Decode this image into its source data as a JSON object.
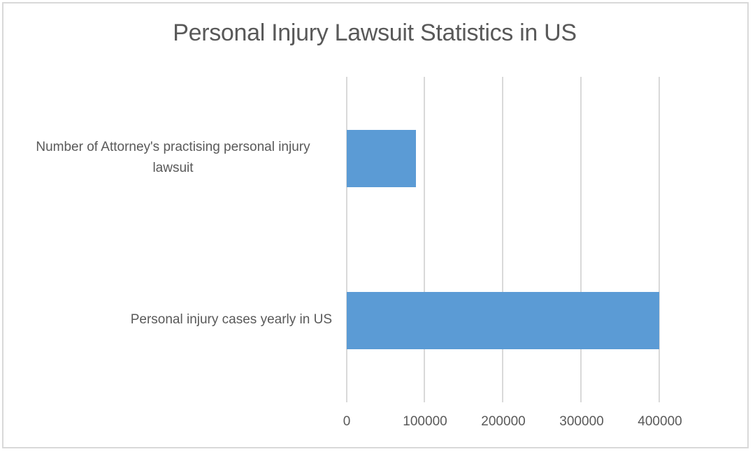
{
  "chart": {
    "title": "Personal Injury Lawsuit Statistics in US",
    "bar_color": "#5B9BD5",
    "gridline_color": "#d9d9d9",
    "text_color": "#595959",
    "categories": [
      "Number of Attorney's practising personal injury lawsuit",
      "Personal injury cases yearly in US"
    ],
    "x_ticks": [
      "0",
      "100000",
      "200000",
      "300000",
      "400000"
    ]
  },
  "chart_data": {
    "type": "bar",
    "orientation": "horizontal",
    "title": "Personal Injury Lawsuit Statistics in US",
    "categories": [
      "Number of Attorney's practising personal injury lawsuit",
      "Personal injury cases yearly in US"
    ],
    "values": [
      89000,
      400000
    ],
    "xlabel": "",
    "ylabel": "",
    "xlim": [
      0,
      400000
    ],
    "x_ticks": [
      0,
      100000,
      200000,
      300000,
      400000
    ],
    "grid": true,
    "legend": null
  }
}
